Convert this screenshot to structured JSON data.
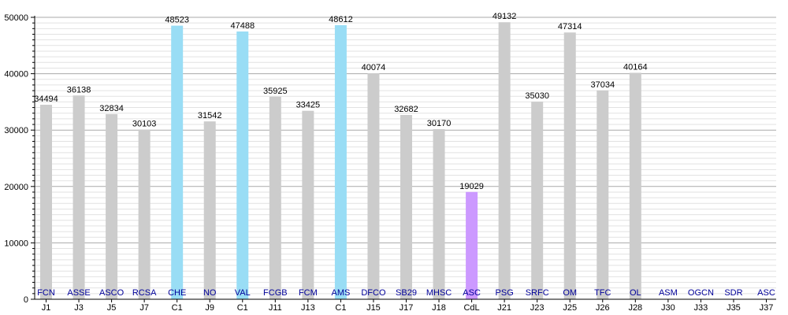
{
  "chart_data": {
    "type": "bar",
    "title": "",
    "xlabel": "",
    "ylabel": "",
    "ylim": [
      0,
      50000
    ],
    "yticks": [
      0,
      10000,
      20000,
      30000,
      40000,
      50000
    ],
    "grid": true,
    "colors": {
      "league": "#cccccc",
      "cup_c1": "#99ddf5",
      "cup_cdl": "#cc99ff",
      "team_label": "#000099",
      "grid_major": "#aaaaaa",
      "grid_minor": "#e2e2e2"
    },
    "bars": [
      {
        "round": "J1",
        "team": "FCN",
        "value": 34494,
        "kind": "league"
      },
      {
        "round": "J3",
        "team": "ASSE",
        "value": 36138,
        "kind": "league"
      },
      {
        "round": "J5",
        "team": "ASCO",
        "value": 32834,
        "kind": "league"
      },
      {
        "round": "J7",
        "team": "RCSA",
        "value": 30103,
        "kind": "league"
      },
      {
        "round": "C1",
        "team": "CHE",
        "value": 48523,
        "kind": "cup_c1"
      },
      {
        "round": "J9",
        "team": "NO",
        "value": 31542,
        "kind": "league"
      },
      {
        "round": "C1",
        "team": "VAL",
        "value": 47488,
        "kind": "cup_c1"
      },
      {
        "round": "J11",
        "team": "FCGB",
        "value": 35925,
        "kind": "league"
      },
      {
        "round": "J13",
        "team": "FCM",
        "value": 33425,
        "kind": "league"
      },
      {
        "round": "C1",
        "team": "AMS",
        "value": 48612,
        "kind": "cup_c1"
      },
      {
        "round": "J15",
        "team": "DFCO",
        "value": 40074,
        "kind": "league"
      },
      {
        "round": "J17",
        "team": "SB29",
        "value": 32682,
        "kind": "league"
      },
      {
        "round": "J18",
        "team": "MHSC",
        "value": 30170,
        "kind": "league"
      },
      {
        "round": "CdL",
        "team": "ASC",
        "value": 19029,
        "kind": "cup_cdl"
      },
      {
        "round": "J21",
        "team": "PSG",
        "value": 49132,
        "kind": "league"
      },
      {
        "round": "J23",
        "team": "SRFC",
        "value": 35030,
        "kind": "league"
      },
      {
        "round": "J25",
        "team": "OM",
        "value": 47314,
        "kind": "league"
      },
      {
        "round": "J26",
        "team": "TFC",
        "value": 37034,
        "kind": "league"
      },
      {
        "round": "J28",
        "team": "OL",
        "value": 40164,
        "kind": "league"
      },
      {
        "round": "J30",
        "team": "ASM",
        "value": null,
        "kind": "league"
      },
      {
        "round": "J33",
        "team": "OGCN",
        "value": null,
        "kind": "league"
      },
      {
        "round": "J35",
        "team": "SDR",
        "value": null,
        "kind": "league"
      },
      {
        "round": "J37",
        "team": "ASC",
        "value": null,
        "kind": "league"
      }
    ]
  }
}
